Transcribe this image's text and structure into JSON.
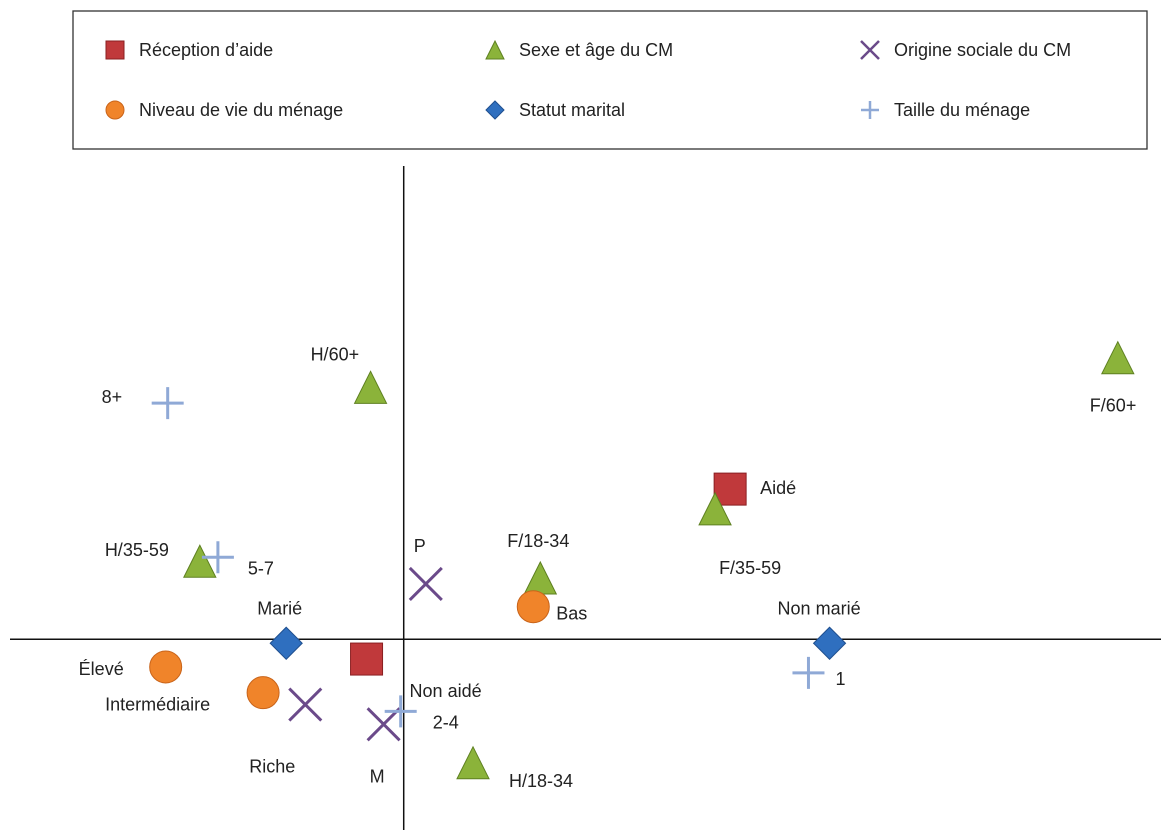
{
  "chart_data": {
    "type": "scatter",
    "title": "",
    "xlabel": "",
    "ylabel": "",
    "xlim": [
      -3.92,
      7.54
    ],
    "ylim": [
      -1.93,
      4.79
    ],
    "grid": false,
    "axes_cross_at_origin": true,
    "legend_placement": "top",
    "colors": {
      "reception": "#c0393b",
      "sexe_age": "#8bb33a",
      "origine": "#6b4a8a",
      "niveau": "#f0842a",
      "statut": "#2f6fbf",
      "taille": "#8fa9d6"
    },
    "series": [
      {
        "name": "Réception d’aide",
        "marker": "square",
        "color": "#c0393b",
        "points": [
          {
            "label": "Aidé",
            "x": 3.25,
            "y": 1.52
          },
          {
            "label": "Non aidé",
            "x": -0.37,
            "y": -0.2
          }
        ]
      },
      {
        "name": "Sexe et âge du CM",
        "marker": "triangle",
        "color": "#8bb33a",
        "points": [
          {
            "label": "F/60+",
            "x": 7.11,
            "y": 2.85
          },
          {
            "label": "H/60+",
            "x": -0.33,
            "y": 2.55
          },
          {
            "label": "F/35-59",
            "x": 3.1,
            "y": 1.32
          },
          {
            "label": "H/35-59",
            "x": -2.03,
            "y": 0.79
          },
          {
            "label": "F/18-34",
            "x": 1.36,
            "y": 0.62
          },
          {
            "label": "H/18-34",
            "x": 0.69,
            "y": -1.25
          }
        ]
      },
      {
        "name": "Origine sociale du CM",
        "marker": "x",
        "color": "#6b4a8a",
        "points": [
          {
            "label": "P",
            "x": 0.22,
            "y": 0.56
          },
          {
            "label": "Riche",
            "x": -0.98,
            "y": -0.66
          },
          {
            "label": "M",
            "x": -0.2,
            "y": -0.86
          }
        ]
      },
      {
        "name": "Niveau de vie du ménage",
        "marker": "circle",
        "color": "#f0842a",
        "points": [
          {
            "label": "Bas",
            "x": 1.29,
            "y": 0.33
          },
          {
            "label": "Élevé",
            "x": -2.37,
            "y": -0.28
          },
          {
            "label": "Intermédiaire",
            "x": -1.4,
            "y": -0.54
          }
        ]
      },
      {
        "name": "Statut marital",
        "marker": "diamond",
        "color": "#2f6fbf",
        "points": [
          {
            "label": "Marié",
            "x": -1.17,
            "y": -0.04
          },
          {
            "label": "Non marié",
            "x": 4.24,
            "y": -0.04
          }
        ]
      },
      {
        "name": "Taille du ménage",
        "marker": "plus",
        "color": "#8fa9d6",
        "points": [
          {
            "label": "8+",
            "x": -2.35,
            "y": 2.39
          },
          {
            "label": "5-7",
            "x": -1.85,
            "y": 0.83
          },
          {
            "label": "1",
            "x": 4.03,
            "y": -0.34
          },
          {
            "label": "2-4",
            "x": -0.03,
            "y": -0.73
          }
        ]
      }
    ]
  }
}
